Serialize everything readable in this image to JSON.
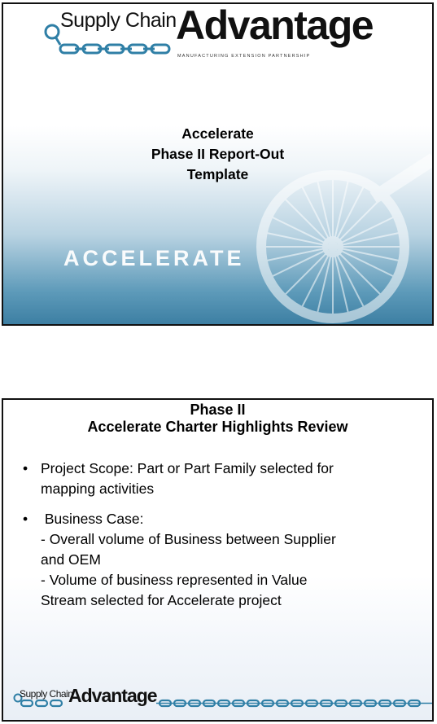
{
  "slide1": {
    "logo": {
      "supply_chain": "Supply Chain",
      "advantage": "Advantage",
      "tagline": "MANUFACTURING EXTENSION PARTNERSHIP"
    },
    "title_lines": [
      "Accelerate",
      "Phase II Report-Out",
      "Template"
    ],
    "accelerate_word": "ACCELERATE"
  },
  "slide2": {
    "title_lines": [
      "Phase II",
      "Accelerate Charter Highlights Review"
    ],
    "bullets": [
      {
        "lines": [
          "Project Scope:  Part or Part Family selected for",
          "mapping activities"
        ]
      },
      {
        "lines": [
          " Business Case:",
          "- Overall volume of Business between Supplier",
          "and OEM",
          "- Volume of business represented in Value",
          "Stream selected for Accelerate project"
        ]
      }
    ],
    "bullet_symbol": "•",
    "logo": {
      "supply_chain": "Supply Chain",
      "advantage": "Advantage"
    }
  },
  "colors": {
    "chain": "#2f7fa6",
    "slide_bottom": "#3d7fa3"
  }
}
